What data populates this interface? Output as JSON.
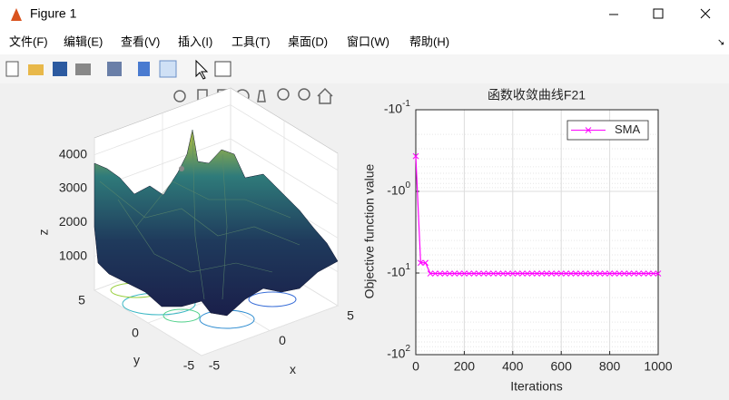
{
  "window": {
    "title": "Figure 1"
  },
  "menu": [
    "文件(F)",
    "编辑(E)",
    "查看(V)",
    "插入(I)",
    "工具(T)",
    "桌面(D)",
    "窗口(W)",
    "帮助(H)"
  ],
  "chart_data": [
    {
      "type": "surface3d",
      "xlabel": "x",
      "ylabel": "y",
      "zlabel": "z",
      "xlim": [
        -5,
        5
      ],
      "ylim": [
        -5,
        5
      ],
      "zlim": [
        0,
        4500
      ],
      "xticks": [
        -5,
        0,
        5
      ],
      "yticks": [
        -5,
        0,
        5
      ],
      "zticks": [
        1000,
        2000,
        3000,
        4000
      ],
      "grid": true
    },
    {
      "type": "line",
      "title": "函数收敛曲线F21",
      "xlabel": "Iterations",
      "ylabel": "Objective function value",
      "xlim": [
        0,
        1000
      ],
      "xticks": [
        0,
        200,
        400,
        600,
        800,
        1000
      ],
      "yscale": "log",
      "ylim": [
        -0.1,
        -100
      ],
      "yticks": [
        {
          "value": -0.1,
          "label": "-10^-1"
        },
        {
          "value": -1,
          "label": "-10^0"
        },
        {
          "value": -10,
          "label": "-10^1"
        },
        {
          "value": -100,
          "label": "-10^2"
        }
      ],
      "grid": true,
      "minor_grid": true,
      "legend": "northeast",
      "x": [
        0,
        20,
        40,
        60,
        80,
        100,
        120,
        140,
        160,
        180,
        200,
        220,
        240,
        260,
        280,
        300,
        320,
        340,
        360,
        380,
        400,
        420,
        440,
        460,
        480,
        500,
        520,
        540,
        560,
        580,
        600,
        620,
        640,
        660,
        680,
        700,
        720,
        740,
        760,
        780,
        800,
        820,
        840,
        860,
        880,
        900,
        920,
        940,
        960,
        980,
        1000
      ],
      "series": [
        {
          "name": "SMA",
          "color": "#ff00ff",
          "values": [
            -0.37,
            -7.5,
            -7.5,
            -10.15,
            -10.15,
            -10.15,
            -10.15,
            -10.15,
            -10.15,
            -10.15,
            -10.15,
            -10.15,
            -10.15,
            -10.15,
            -10.15,
            -10.15,
            -10.15,
            -10.15,
            -10.15,
            -10.15,
            -10.15,
            -10.15,
            -10.15,
            -10.15,
            -10.15,
            -10.15,
            -10.15,
            -10.15,
            -10.15,
            -10.15,
            -10.15,
            -10.15,
            -10.15,
            -10.15,
            -10.15,
            -10.15,
            -10.15,
            -10.15,
            -10.15,
            -10.15,
            -10.15,
            -10.15,
            -10.15,
            -10.15,
            -10.15,
            -10.15,
            -10.15,
            -10.15,
            -10.15,
            -10.15,
            -10.15
          ]
        }
      ]
    }
  ]
}
